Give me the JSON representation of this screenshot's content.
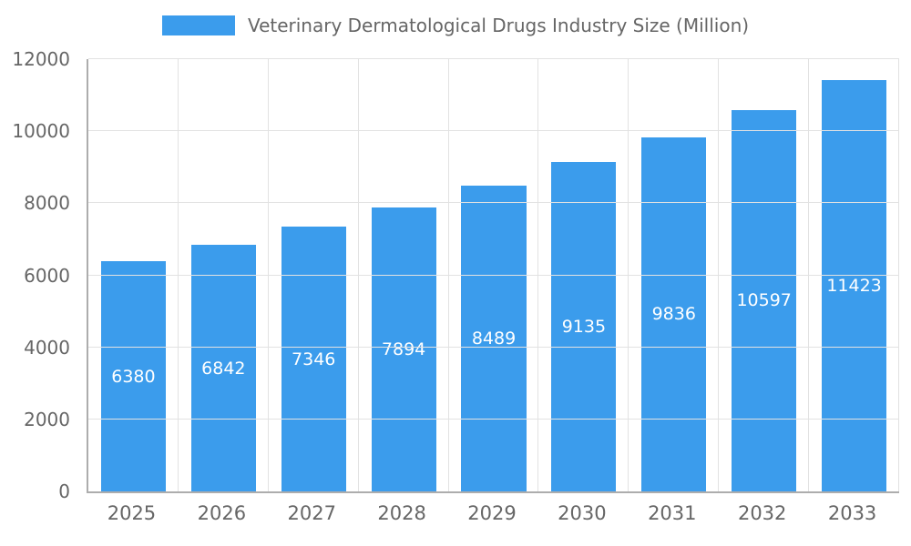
{
  "chart_data": {
    "type": "bar",
    "title": "Veterinary Dermatological Drugs Industry Size (Million)",
    "categories": [
      "2025",
      "2026",
      "2027",
      "2028",
      "2029",
      "2030",
      "2031",
      "2032",
      "2033"
    ],
    "values": [
      6380,
      6842,
      7346,
      7894,
      8489,
      9135,
      9836,
      10597,
      11423
    ],
    "xlabel": "",
    "ylabel": "",
    "ylim": [
      0,
      12000
    ],
    "ytick_step": 2000,
    "ytick_labels": [
      "0",
      "2000",
      "4000",
      "6000",
      "8000",
      "10000",
      "12000"
    ],
    "grid": true,
    "legend_position": "top",
    "colors": {
      "bar": "#3B9CEC",
      "bar_label_text": "#FFFFFF",
      "axis_text": "#666666",
      "gridline": "#E2E2E2",
      "axis_line": "#ADADAD",
      "background": "#FFFFFF"
    }
  }
}
